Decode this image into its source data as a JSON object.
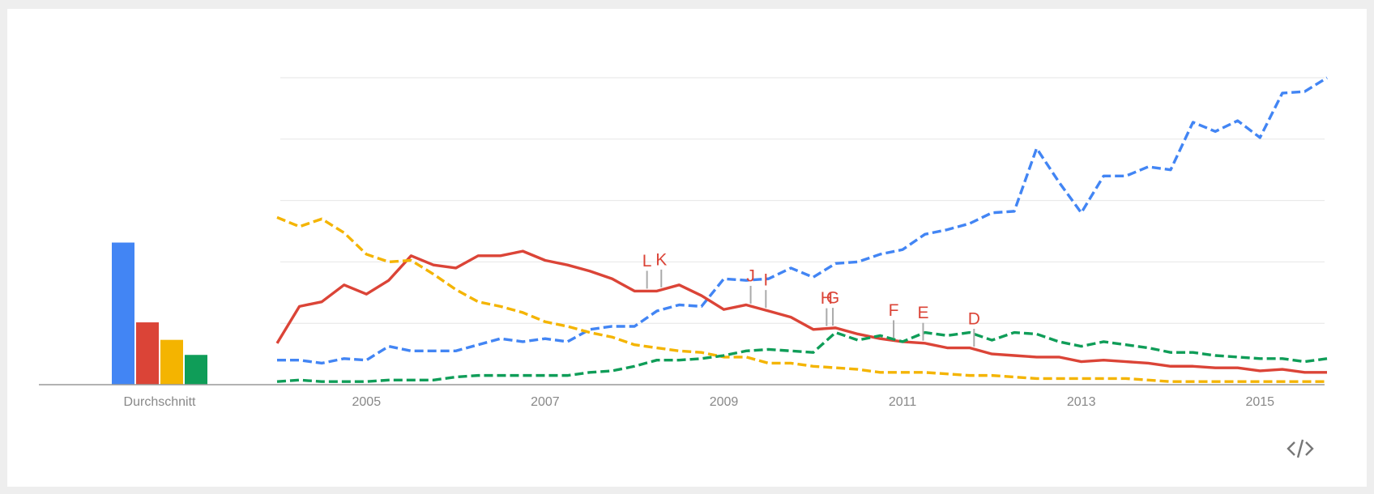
{
  "chart_data": [
    {
      "type": "bar",
      "categories": [
        "Durchschnitt"
      ],
      "series": [
        {
          "color": "#4285f4",
          "values": [
            46.3
          ]
        },
        {
          "color": "#db4437",
          "values": [
            20.3
          ]
        },
        {
          "color": "#f4b400",
          "values": [
            14.6
          ]
        },
        {
          "color": "#0f9d58",
          "values": [
            9.7
          ]
        }
      ],
      "ylim": [
        0,
        100
      ]
    },
    {
      "type": "line",
      "x": [
        2004,
        2004.25,
        2004.5,
        2004.75,
        2005,
        2005.25,
        2005.5,
        2005.75,
        2006,
        2006.25,
        2006.5,
        2006.75,
        2007,
        2007.25,
        2007.5,
        2007.75,
        2008,
        2008.25,
        2008.5,
        2008.75,
        2009,
        2009.25,
        2009.5,
        2009.75,
        2010,
        2010.25,
        2010.5,
        2010.75,
        2011,
        2011.25,
        2011.5,
        2011.75,
        2012,
        2012.25,
        2012.5,
        2012.75,
        2013,
        2013.25,
        2013.5,
        2013.75,
        2014,
        2014.25,
        2014.5,
        2014.75,
        2015,
        2015.25,
        2015.5,
        2015.75
      ],
      "series": [
        {
          "color": "#4285f4",
          "dashed": true,
          "values": [
            8,
            8,
            7,
            8.5,
            8,
            12.5,
            11,
            11,
            11,
            13,
            15,
            14,
            15,
            14,
            18,
            19,
            19,
            24,
            26,
            25.5,
            34.5,
            34,
            34.5,
            38,
            35,
            39.5,
            40,
            42.5,
            44,
            49,
            50.5,
            52.5,
            56,
            56.5,
            77,
            66,
            56,
            68,
            68,
            71,
            70,
            85.5,
            82.5,
            86,
            80.5,
            95,
            95.5,
            100
          ]
        },
        {
          "color": "#db4437",
          "dashed": false,
          "values": [
            13.5,
            25.5,
            27,
            32.5,
            29.5,
            34,
            42,
            39,
            38,
            42,
            42,
            43.5,
            40.5,
            39,
            37,
            34.5,
            30.5,
            30.5,
            32.5,
            29,
            24.5,
            26,
            24,
            22,
            18,
            18.5,
            16.5,
            15,
            14,
            13.5,
            12,
            12,
            10,
            9.5,
            9,
            9,
            7.5,
            8,
            7.5,
            7,
            6,
            6,
            5.5,
            5.5,
            4.5,
            5,
            4,
            4
          ]
        },
        {
          "color": "#f4b400",
          "dashed": true,
          "values": [
            54.5,
            51.5,
            54,
            49.5,
            42.5,
            40,
            40.5,
            36,
            31,
            27,
            25.5,
            23.5,
            20.5,
            19,
            17,
            15.5,
            13,
            12,
            11,
            10.5,
            9,
            9,
            7,
            7,
            6,
            5.5,
            5,
            4,
            4,
            4,
            3.5,
            3,
            3,
            2.5,
            2,
            2,
            2,
            2,
            2,
            1.5,
            1,
            1,
            1,
            1,
            1,
            1,
            1,
            1
          ]
        },
        {
          "color": "#0f9d58",
          "dashed": true,
          "values": [
            1,
            1.5,
            1,
            1,
            1,
            1.5,
            1.5,
            1.5,
            2.5,
            3,
            3,
            3,
            3,
            3,
            4,
            4.5,
            6,
            8,
            8,
            8.5,
            9.5,
            11,
            11.5,
            11,
            10.5,
            17,
            14.5,
            16,
            14,
            17,
            16,
            17,
            14.5,
            17,
            16.5,
            14,
            12.5,
            14,
            13,
            12,
            10.5,
            10.5,
            9.5,
            9,
            8.5,
            8.5,
            7.5,
            8.5
          ]
        }
      ],
      "xlim": [
        2004,
        2015.75
      ],
      "xticks": [
        2005,
        2007,
        2009,
        2011,
        2013,
        2015
      ],
      "ylim": [
        0,
        100
      ],
      "yticks": [
        0,
        20,
        40,
        60,
        80,
        100
      ],
      "grid": true,
      "annotations": [
        {
          "label": "L",
          "x": 2008.14
        },
        {
          "label": "K",
          "x": 2008.3
        },
        {
          "label": "J",
          "x": 2009.3
        },
        {
          "label": "I",
          "x": 2009.47
        },
        {
          "label": "H",
          "x": 2010.15
        },
        {
          "label": "G",
          "x": 2010.22
        },
        {
          "label": "F",
          "x": 2010.9
        },
        {
          "label": "E",
          "x": 2011.23
        },
        {
          "label": "D",
          "x": 2011.8
        }
      ]
    }
  ]
}
